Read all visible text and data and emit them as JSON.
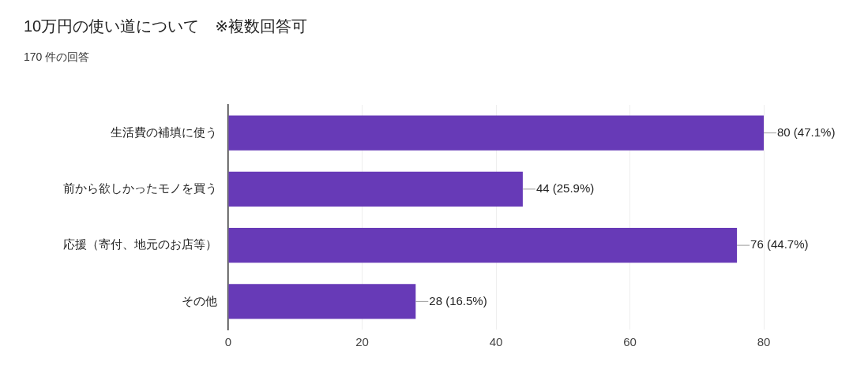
{
  "chart_data": {
    "type": "bar",
    "orientation": "horizontal",
    "title": "10万円の使い道について　※複数回答可",
    "subtitle": "170 件の回答",
    "categories": [
      "生活費の補填に使う",
      "前から欲しかったモノを買う",
      "応援（寄付、地元のお店等）",
      "その他"
    ],
    "values": [
      80,
      44,
      76,
      28
    ],
    "color": "#673ab7",
    "value_labels": [
      "80 (47.1%)",
      "44 (25.9%)",
      "76 (44.7%)",
      "28 (16.5%)"
    ],
    "xlim": [
      0,
      80
    ],
    "xticks": [
      0,
      20,
      40,
      60,
      80
    ],
    "grid": "x",
    "legend": false
  }
}
